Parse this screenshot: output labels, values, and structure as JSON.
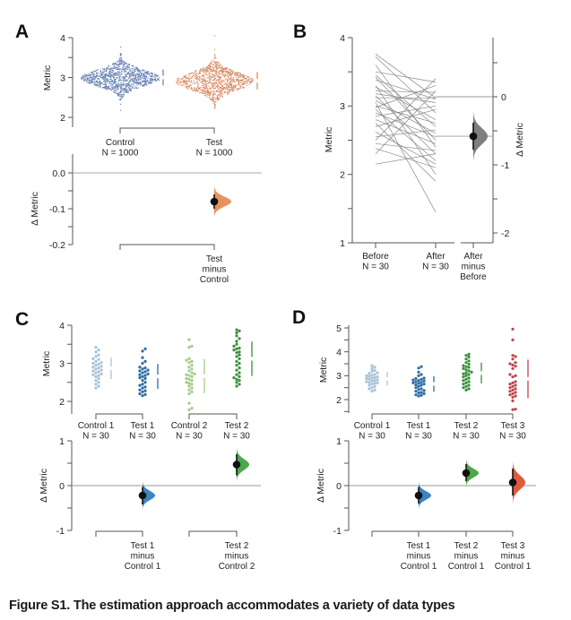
{
  "caption": "Figure S1. The estimation approach accommodates a variety of data types",
  "chart_data": [
    {
      "panel": "A",
      "type": "scatter",
      "subtype": "two-group swarm estimation plot",
      "ylabel": "Metric",
      "ylim": [
        1.85,
        4
      ],
      "yticks": [
        "2",
        "3",
        "4"
      ],
      "groups": [
        {
          "name": "Control",
          "n_label": "N = 1000",
          "n": 1000,
          "mean": 3.0,
          "sd": 0.2,
          "color": "#6b84b4"
        },
        {
          "name": "Test",
          "n_label": "N = 1000",
          "n": 1000,
          "mean": 2.92,
          "sd": 0.22,
          "color": "#d9906a"
        }
      ],
      "delta": {
        "ylabel": "Δ Metric",
        "ylim": [
          -0.2,
          0.0
        ],
        "yticks": [
          "0.0",
          "-0.1",
          "-0.2"
        ],
        "comparisons": [
          {
            "label": [
              "Test",
              "minus",
              "Control"
            ],
            "effect": -0.08,
            "ci": [
              -0.1,
              -0.06
            ],
            "color": "#e8935f"
          }
        ]
      }
    },
    {
      "panel": "B",
      "type": "line",
      "subtype": "paired (slopegraph) estimation plot",
      "ylabel": "Metric",
      "ylim": [
        1,
        4
      ],
      "yticks": [
        "1",
        "2",
        "3",
        "4"
      ],
      "groups": [
        {
          "name": "Before",
          "n_label": "N = 30"
        },
        {
          "name": "After",
          "n_label": "N = 30"
        }
      ],
      "pairs": [
        [
          3.76,
          3.12
        ],
        [
          3.72,
          2.9
        ],
        [
          3.6,
          2.4
        ],
        [
          3.5,
          3.35
        ],
        [
          3.45,
          2.7
        ],
        [
          3.42,
          2.5
        ],
        [
          3.38,
          3.1
        ],
        [
          3.3,
          2.0
        ],
        [
          3.28,
          2.8
        ],
        [
          3.22,
          3.2
        ],
        [
          3.18,
          3.05
        ],
        [
          3.15,
          2.3
        ],
        [
          3.12,
          3.12
        ],
        [
          3.08,
          2.6
        ],
        [
          3.05,
          1.45
        ],
        [
          3.0,
          2.75
        ],
        [
          2.98,
          3.3
        ],
        [
          2.95,
          2.2
        ],
        [
          2.9,
          2.55
        ],
        [
          2.85,
          3.0
        ],
        [
          2.8,
          2.45
        ],
        [
          2.75,
          1.9
        ],
        [
          2.7,
          2.95
        ],
        [
          2.62,
          2.15
        ],
        [
          2.55,
          2.65
        ],
        [
          2.5,
          3.4
        ],
        [
          2.45,
          2.35
        ],
        [
          2.38,
          2.1
        ],
        [
          2.3,
          3.22
        ],
        [
          2.15,
          2.3
        ]
      ],
      "delta": {
        "ylabel": "Δ Metric",
        "ylim": [
          -2.2,
          0.45
        ],
        "yticks": [
          "0",
          "-1",
          "-2"
        ],
        "comparisons": [
          {
            "label": [
              "After",
              "minus",
              "Before"
            ],
            "effect": -0.58,
            "ci": [
              -0.78,
              -0.38
            ],
            "color": "#7f7f7f"
          }
        ]
      }
    },
    {
      "panel": "C",
      "type": "scatter",
      "subtype": "multi two-group estimation plot",
      "ylabel": "Metric",
      "ylim": [
        1.7,
        4
      ],
      "yticks": [
        "2",
        "3",
        "4"
      ],
      "groups": [
        {
          "name": "Control 1",
          "n_label": "N = 30",
          "color": "#a9c3d8",
          "values": [
            3.42,
            3.35,
            3.3,
            3.22,
            3.18,
            3.12,
            3.1,
            3.05,
            3.02,
            3.0,
            2.98,
            2.95,
            2.92,
            2.9,
            2.88,
            2.85,
            2.82,
            2.8,
            2.78,
            2.75,
            2.72,
            2.7,
            2.68,
            2.65,
            2.6,
            2.55,
            2.5,
            2.45,
            2.4,
            2.35
          ]
        },
        {
          "name": "Test 1",
          "n_label": "N = 30",
          "color": "#2e6da4",
          "values": [
            3.38,
            3.32,
            3.15,
            3.05,
            3.0,
            2.9,
            2.88,
            2.85,
            2.82,
            2.8,
            2.78,
            2.75,
            2.72,
            2.7,
            2.68,
            2.65,
            2.62,
            2.6,
            2.55,
            2.5,
            2.45,
            2.42,
            2.38,
            2.35,
            2.3,
            2.28,
            2.25,
            2.2,
            2.18,
            2.15
          ]
        },
        {
          "name": "Control 2",
          "n_label": "N = 30",
          "color": "#a5cc8c",
          "values": [
            3.62,
            3.45,
            3.42,
            3.12,
            3.08,
            3.05,
            3.02,
            2.95,
            2.9,
            2.85,
            2.8,
            2.75,
            2.72,
            2.7,
            2.68,
            2.65,
            2.6,
            2.58,
            2.55,
            2.5,
            2.48,
            2.45,
            2.4,
            2.35,
            2.3,
            2.25,
            2.2,
            1.95,
            1.82,
            1.78
          ]
        },
        {
          "name": "Test 2",
          "n_label": "N = 30",
          "color": "#3a8f3a",
          "values": [
            3.88,
            3.85,
            3.8,
            3.72,
            3.65,
            3.58,
            3.5,
            3.45,
            3.4,
            3.38,
            3.35,
            3.3,
            3.28,
            3.22,
            3.18,
            3.12,
            3.05,
            3.0,
            2.95,
            2.88,
            2.82,
            2.75,
            2.7,
            2.65,
            2.62,
            2.58,
            2.55,
            2.5,
            2.45,
            2.4
          ]
        }
      ],
      "delta": {
        "ylabel": "Δ Metric",
        "ylim": [
          -1,
          1
        ],
        "yticks": [
          "1",
          "0",
          "-1"
        ],
        "comparisons": [
          {
            "label": [
              "Test 1",
              "minus",
              "Control 1"
            ],
            "group_index": 1,
            "effect": -0.22,
            "ci": [
              -0.42,
              -0.03
            ],
            "color": "#3c84c4"
          },
          {
            "label": [
              "Test 2",
              "minus",
              "Control 2"
            ],
            "group_index": 3,
            "effect": 0.47,
            "ci": [
              0.23,
              0.7
            ],
            "color": "#4aaa4a"
          }
        ]
      }
    },
    {
      "panel": "D",
      "type": "scatter",
      "subtype": "shared-control estimation plot",
      "ylabel": "Metric",
      "ylim": [
        1.5,
        5
      ],
      "yticks": [
        "2",
        "3",
        "4",
        "5"
      ],
      "groups": [
        {
          "name": "Control 1",
          "n_label": "N = 30",
          "color": "#a9c3d8",
          "values": [
            3.42,
            3.35,
            3.3,
            3.22,
            3.18,
            3.12,
            3.1,
            3.05,
            3.02,
            3.0,
            2.98,
            2.95,
            2.92,
            2.9,
            2.88,
            2.85,
            2.82,
            2.8,
            2.78,
            2.75,
            2.72,
            2.7,
            2.68,
            2.65,
            2.6,
            2.55,
            2.5,
            2.45,
            2.4,
            2.35
          ]
        },
        {
          "name": "Test 1",
          "n_label": "N = 30",
          "color": "#2e6da4",
          "values": [
            3.38,
            3.32,
            3.15,
            3.05,
            3.0,
            2.9,
            2.88,
            2.85,
            2.82,
            2.8,
            2.78,
            2.75,
            2.72,
            2.7,
            2.68,
            2.65,
            2.62,
            2.6,
            2.55,
            2.5,
            2.45,
            2.42,
            2.38,
            2.35,
            2.3,
            2.28,
            2.25,
            2.2,
            2.18,
            2.15
          ]
        },
        {
          "name": "Test 2",
          "n_label": "N = 30",
          "color": "#3a8f3a",
          "values": [
            3.9,
            3.85,
            3.78,
            3.7,
            3.62,
            3.55,
            3.48,
            3.42,
            3.38,
            3.35,
            3.3,
            3.25,
            3.2,
            3.15,
            3.12,
            3.08,
            3.05,
            3.0,
            2.95,
            2.9,
            2.85,
            2.8,
            2.75,
            2.7,
            2.65,
            2.6,
            2.55,
            2.5,
            2.45,
            2.4
          ]
        },
        {
          "name": "Test 3",
          "n_label": "N = 30",
          "color": "#c0424a",
          "values": [
            4.95,
            4.5,
            3.85,
            3.8,
            3.7,
            3.55,
            3.5,
            3.45,
            3.4,
            3.3,
            3.05,
            3.0,
            2.95,
            2.75,
            2.7,
            2.65,
            2.6,
            2.55,
            2.5,
            2.45,
            2.4,
            2.35,
            2.3,
            2.25,
            2.2,
            2.15,
            2.1,
            1.95,
            1.6,
            1.58
          ]
        }
      ],
      "delta": {
        "ylabel": "Δ Metric",
        "ylim": [
          -1,
          1
        ],
        "yticks": [
          "1",
          "0",
          "-1"
        ],
        "comparisons": [
          {
            "label": [
              "Test 1",
              "minus",
              "Control 1"
            ],
            "group_index": 1,
            "effect": -0.22,
            "ci": [
              -0.4,
              -0.03
            ],
            "color": "#3c84c4"
          },
          {
            "label": [
              "Test 2",
              "minus",
              "Control 1"
            ],
            "group_index": 2,
            "effect": 0.28,
            "ci": [
              0.1,
              0.48
            ],
            "color": "#4aaa4a"
          },
          {
            "label": [
              "Test 3",
              "minus",
              "Control 1"
            ],
            "group_index": 3,
            "effect": 0.07,
            "ci": [
              -0.22,
              0.38
            ],
            "color": "#e05a3c"
          }
        ]
      }
    }
  ]
}
